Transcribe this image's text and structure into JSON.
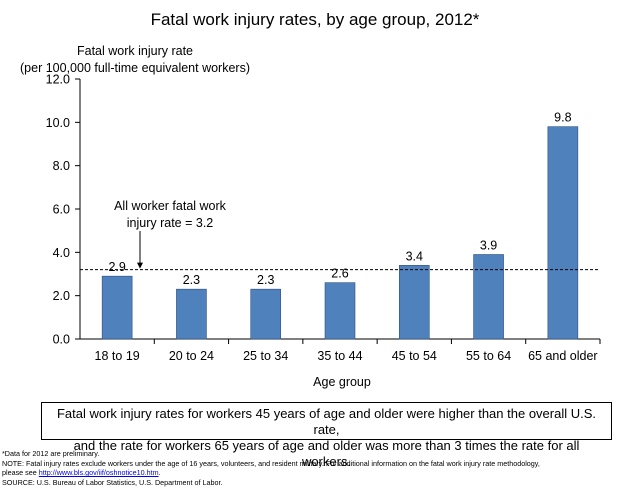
{
  "chart_data": {
    "type": "bar",
    "title": "Fatal work injury rates, by age group, 2012*",
    "ylabel_line1": "Fatal work injury rate",
    "ylabel_line2": "(per 100,000 full-time equivalent workers)",
    "xlabel": "Age group",
    "categories": [
      "18 to 19",
      "20 to 24",
      "25 to 34",
      "35 to 44",
      "45 to 54",
      "55 to 64",
      "65 and older"
    ],
    "values": [
      2.9,
      2.3,
      2.3,
      2.6,
      3.4,
      3.9,
      9.8
    ],
    "value_labels": [
      "2.9",
      "2.3",
      "2.3",
      "2.6",
      "3.4",
      "3.9",
      "9.8"
    ],
    "ylim": [
      0,
      12
    ],
    "yticks": [
      0,
      2,
      4,
      6,
      8,
      10,
      12
    ],
    "ytick_labels": [
      "0.0",
      "2.0",
      "4.0",
      "6.0",
      "8.0",
      "10.0",
      "12.0"
    ],
    "grid": false,
    "bar_color": "#4f81bd",
    "reference_line": {
      "value": 3.2,
      "label_line1": "All worker fatal work",
      "label_line2": "injury rate = 3.2"
    }
  },
  "summary": {
    "line1": "Fatal work injury rates for workers 45 years of age and older were higher than the overall U.S. rate,",
    "line2": "and the rate for workers 65 years of age and older was more than 3 times the rate for all workers."
  },
  "footnotes": {
    "asterisk": "*Data for 2012 are preliminary.",
    "note": "NOTE: Fatal injury rates exclude workers under the age of 16 years, volunteers, and resident military. For additional information on the fatal work injury rate methodology,",
    "note_cont_prefix": "please see ",
    "note_link": "http://www.bls.gov/iif/oshnotice10.htm",
    "note_cont_suffix": ".",
    "source": "SOURCE:  U.S. Bureau of Labor Statistics, U.S. Department of Labor."
  }
}
